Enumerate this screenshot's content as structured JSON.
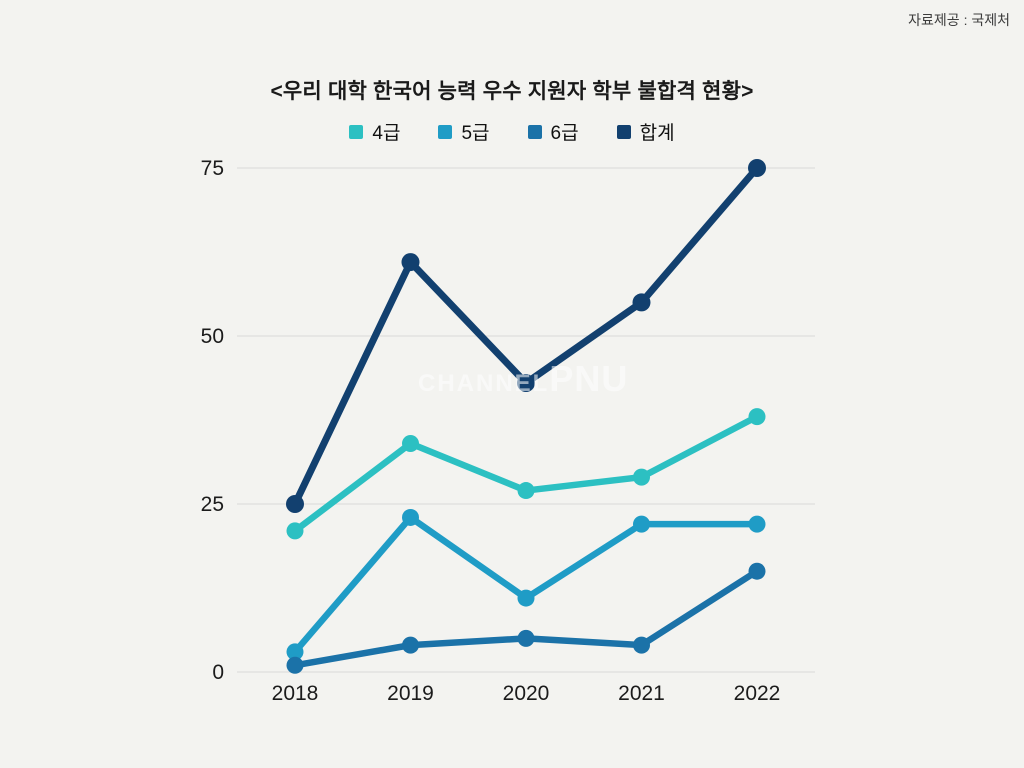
{
  "source_credit": "자료제공 : 국제처",
  "watermark": {
    "text_main": "CHANNEL",
    "text_accent": "PNU"
  },
  "chart_data": {
    "type": "line",
    "title": "<우리 대학 한국어 능력 우수 지원자 학부 불합격 현황>",
    "categories": [
      "2018",
      "2019",
      "2020",
      "2021",
      "2022"
    ],
    "series": [
      {
        "name": "4급",
        "color": "#2cc0c2",
        "values": [
          21,
          34,
          27,
          29,
          38
        ]
      },
      {
        "name": "5급",
        "color": "#1f9cc6",
        "values": [
          3,
          23,
          11,
          22,
          22
        ]
      },
      {
        "name": "6급",
        "color": "#1b72a8",
        "values": [
          1,
          4,
          5,
          4,
          15
        ]
      },
      {
        "name": "합계",
        "color": "#12406f",
        "values": [
          25,
          61,
          43,
          55,
          75
        ]
      }
    ],
    "y_ticks": [
      0,
      25,
      50,
      75
    ],
    "ylim": [
      0,
      75
    ],
    "grid": true,
    "legend_position": "top"
  }
}
